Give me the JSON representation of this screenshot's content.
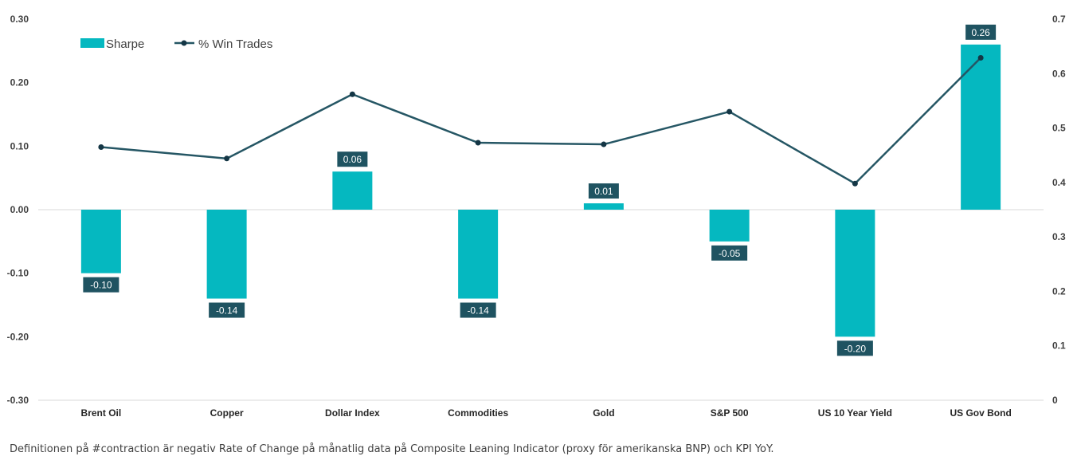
{
  "chart_data": {
    "type": "bar",
    "categories": [
      "Brent Oil",
      "Copper",
      "Dollar Index",
      "Commodities",
      "Gold",
      "S&P 500",
      "US 10 Year Yield",
      "US Gov Bond"
    ],
    "series": [
      {
        "name": "Sharpe",
        "type": "bar",
        "axis": "left",
        "color": "#05B8C0",
        "values": [
          -0.1,
          -0.14,
          0.06,
          -0.14,
          0.01,
          -0.05,
          -0.2,
          0.26
        ],
        "labels": [
          "-0.10",
          "-0.14",
          "0.06",
          "-0.14",
          "0.01",
          "-0.05",
          "-0.20",
          "0.26"
        ]
      },
      {
        "name": "% Win Trades",
        "type": "line",
        "axis": "right",
        "color": "#255664",
        "values": [
          0.465,
          0.444,
          0.562,
          0.473,
          0.47,
          0.53,
          0.398,
          0.629
        ]
      }
    ],
    "y_left": {
      "lim": [
        -0.3,
        0.3
      ],
      "ticks": [
        "0.30",
        "0.20",
        "0.10",
        "0.00",
        "-0.10",
        "-0.20",
        "-0.30"
      ]
    },
    "y_right": {
      "lim": [
        0,
        0.7
      ],
      "ticks": [
        "0.7",
        "0.6",
        "0.5",
        "0.4",
        "0.3",
        "0.2",
        "0.1",
        "0"
      ]
    },
    "legend_position": "top-left",
    "label_box_color": "#1F5361",
    "grid": false
  },
  "footnote": "Definitionen på #contraction är negativ Rate of Change på månatlig data på Composite Leaning Indicator (proxy för amerikanska BNP) och KPI YoY."
}
